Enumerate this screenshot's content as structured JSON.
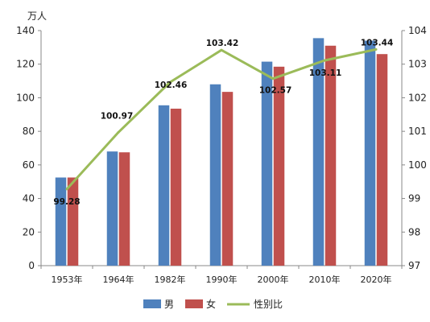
{
  "chart_data": {
    "type": "bar",
    "categories": [
      "1953年",
      "1964年",
      "1982年",
      "1990年",
      "2000年",
      "2010年",
      "2020年"
    ],
    "left_axis_unit": "万人",
    "ylim": [
      0,
      140
    ],
    "yticks": [
      0,
      20,
      40,
      60,
      80,
      100,
      120,
      140
    ],
    "y2lim": [
      97,
      104
    ],
    "y2ticks": [
      97,
      98,
      99,
      100,
      101,
      102,
      103,
      104
    ],
    "series": [
      {
        "name": "男",
        "kind": "bar",
        "axis": "left",
        "color": "#4f81bd",
        "values": [
          52.5,
          68,
          95.5,
          108,
          121.5,
          135.5,
          134
        ]
      },
      {
        "name": "女",
        "kind": "bar",
        "axis": "left",
        "color": "#c0504d",
        "values": [
          52.5,
          67.5,
          93.5,
          103.5,
          118.5,
          131,
          126
        ]
      },
      {
        "name": "性别比",
        "kind": "line",
        "axis": "right",
        "color": "#9bbb59",
        "values": [
          99.28,
          100.97,
          102.46,
          103.42,
          102.57,
          103.11,
          103.44
        ],
        "labels": [
          "99.28",
          "100.97",
          "102.46",
          "103.42",
          "102.57",
          "103.11",
          "103.44"
        ]
      }
    ],
    "legend": {
      "position": "bottom",
      "items": [
        "男",
        "女",
        "性别比"
      ]
    },
    "grid": false
  }
}
